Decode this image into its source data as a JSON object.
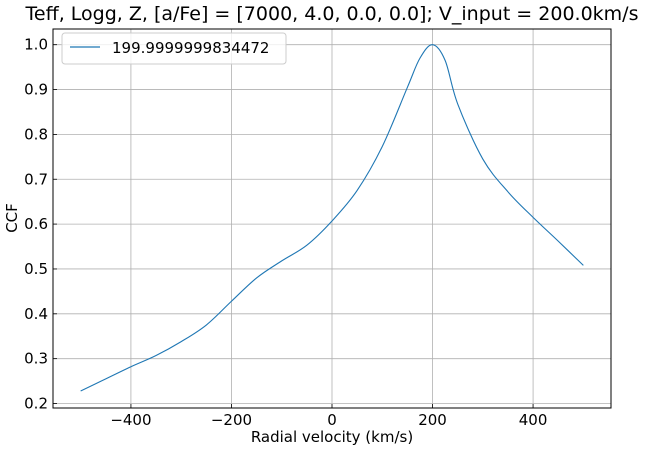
{
  "chart_data": {
    "type": "line",
    "title": "Teff, Logg, Z, [a/Fe] = [7000, 4.0, 0.0, 0.0];  V_input = 200.0km/s",
    "xlabel": "Radial velocity (km/s)",
    "ylabel": "CCF",
    "xlim": [
      -555,
      555
    ],
    "ylim": [
      0.19,
      1.035
    ],
    "xticks": [
      -400,
      -200,
      0,
      200,
      400
    ],
    "xtick_labels": [
      "−400",
      "−200",
      "0",
      "200",
      "400"
    ],
    "yticks": [
      0.2,
      0.3,
      0.4,
      0.5,
      0.6,
      0.7,
      0.8,
      0.9,
      1.0
    ],
    "ytick_labels": [
      "0.2",
      "0.3",
      "0.4",
      "0.5",
      "0.6",
      "0.7",
      "0.8",
      "0.9",
      "1.0"
    ],
    "grid": true,
    "legend_position": "top-left",
    "series": [
      {
        "name": "199.9999999834472",
        "color": "#1f77b4",
        "x": [
          -500,
          -450,
          -400,
          -350,
          -300,
          -250,
          -200,
          -150,
          -100,
          -50,
          0,
          50,
          100,
          150,
          175,
          200,
          225,
          250,
          300,
          350,
          400,
          450,
          500
        ],
        "y": [
          0.228,
          0.255,
          0.282,
          0.307,
          0.338,
          0.375,
          0.428,
          0.48,
          0.518,
          0.553,
          0.607,
          0.675,
          0.773,
          0.905,
          0.97,
          1.0,
          0.965,
          0.868,
          0.745,
          0.672,
          0.615,
          0.562,
          0.508
        ]
      }
    ]
  }
}
